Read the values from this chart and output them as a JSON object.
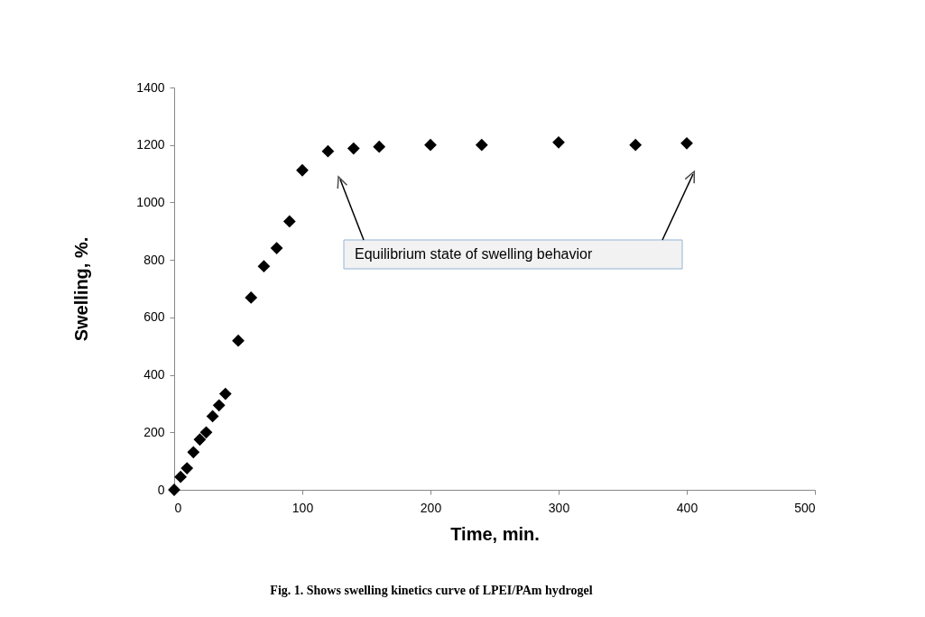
{
  "chart_data": {
    "type": "scatter",
    "xlabel": "Time, min.",
    "ylabel": "Swelling, %.",
    "x": [
      0,
      5,
      10,
      15,
      20,
      25,
      30,
      35,
      40,
      50,
      60,
      70,
      80,
      90,
      100,
      120,
      140,
      160,
      200,
      240,
      300,
      360,
      400
    ],
    "values": [
      0,
      45,
      75,
      131,
      175,
      200,
      256,
      294,
      334,
      519,
      669,
      778,
      841,
      934,
      1112,
      1178,
      1188,
      1194,
      1200,
      1200,
      1209,
      1200,
      1206
    ],
    "color": "#000000",
    "marker": "diamond",
    "xlim": [
      0,
      500
    ],
    "xticks": [
      0,
      100,
      200,
      300,
      400,
      500
    ],
    "ylim": [
      0,
      1400
    ],
    "yticks": [
      0,
      200,
      400,
      600,
      800,
      1000,
      1200,
      1400
    ],
    "grid": false,
    "annotations": [
      "Equilibrium state of swelling behavior",
      "Fig. 1. Shows swelling kinetics curve of LPEI/PAm hydrogel"
    ]
  }
}
